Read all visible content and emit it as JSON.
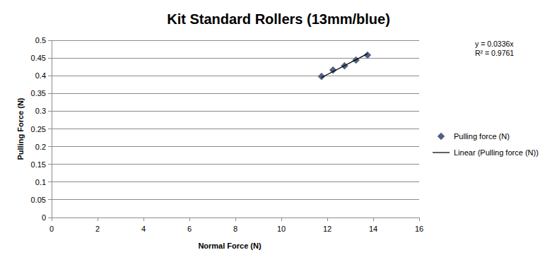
{
  "chart_data": {
    "type": "scatter",
    "title": "Kit Standard Rollers (13mm/blue)",
    "x_label": "Normal Force (N)",
    "y_label": "Pulling Force (N)",
    "annotations": [
      "y = 0.0336x",
      "R² = 0.9761"
    ],
    "series": [
      {
        "name": "Pulling force (N)",
        "type": "scatter",
        "marker": "diamond",
        "color": "#4f6180",
        "x": [
          11.75,
          12.25,
          12.75,
          13.25,
          13.75
        ],
        "values": [
          0.398,
          0.416,
          0.428,
          0.444,
          0.458
        ]
      },
      {
        "name": "Linear (Pulling force (N))",
        "type": "line",
        "line_style": "solid",
        "color": "#000000",
        "x": [
          11.75,
          13.75
        ],
        "values": [
          0.3948,
          0.462
        ]
      }
    ],
    "xlim": [
      0,
      16
    ],
    "xticks": [
      0,
      2,
      4,
      6,
      8,
      10,
      12,
      14,
      16
    ],
    "ylim": [
      0,
      0.5
    ],
    "yticks": [
      0,
      0.05,
      0.1,
      0.15,
      0.2,
      0.25,
      0.3,
      0.35,
      0.4,
      0.45,
      0.5
    ],
    "grid": true,
    "legend": "right"
  }
}
